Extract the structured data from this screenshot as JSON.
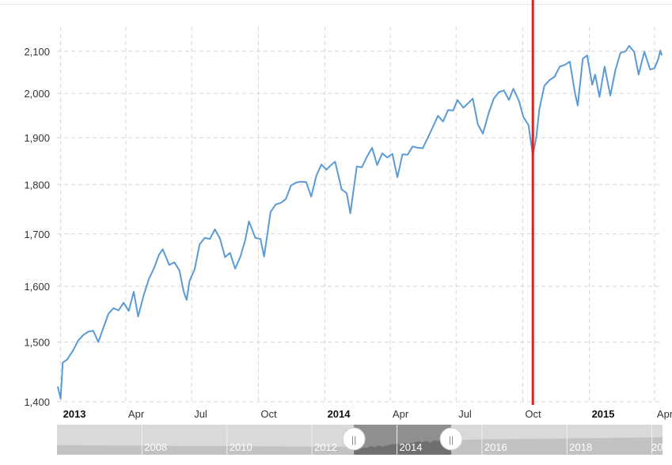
{
  "chart_data": {
    "type": "line",
    "title": "",
    "xlabel": "",
    "ylabel": "",
    "yscale": "log",
    "ylim": [
      1400,
      2160
    ],
    "y_ticks": [
      "1,400",
      "1,500",
      "1,600",
      "1,700",
      "1,800",
      "1,900",
      "2,000",
      "2,100"
    ],
    "y_tick_values": [
      1400,
      1500,
      1600,
      1700,
      1800,
      1900,
      2000,
      2100
    ],
    "xlim": [
      "2012-12-27",
      "2015-04-12"
    ],
    "x_ticks": [
      {
        "label": "2013",
        "date": "2013-01-01",
        "major": true
      },
      {
        "label": "Apr",
        "date": "2013-04-01",
        "major": false
      },
      {
        "label": "Jul",
        "date": "2013-07-01",
        "major": false
      },
      {
        "label": "Oct",
        "date": "2013-10-01",
        "major": false
      },
      {
        "label": "2014",
        "date": "2014-01-01",
        "major": true
      },
      {
        "label": "Apr",
        "date": "2014-04-01",
        "major": false
      },
      {
        "label": "Jul",
        "date": "2014-07-01",
        "major": false
      },
      {
        "label": "Oct",
        "date": "2014-10-01",
        "major": false
      },
      {
        "label": "2015",
        "date": "2015-01-01",
        "major": true
      },
      {
        "label": "Apr",
        "date": "2015-04-01",
        "major": false
      }
    ],
    "grid": true,
    "marker_line": {
      "date": "2014-10-15",
      "color": "#dd2222"
    },
    "series": [
      {
        "color": "#5b9bd5",
        "points": [
          [
            "2012-12-28",
            1425
          ],
          [
            "2013-01-01",
            1405
          ],
          [
            "2013-01-04",
            1465
          ],
          [
            "2013-01-10",
            1470
          ],
          [
            "2013-01-18",
            1485
          ],
          [
            "2013-01-25",
            1502
          ],
          [
            "2013-02-01",
            1512
          ],
          [
            "2013-02-08",
            1518
          ],
          [
            "2013-02-15",
            1520
          ],
          [
            "2013-02-22",
            1500
          ],
          [
            "2013-03-01",
            1525
          ],
          [
            "2013-03-08",
            1550
          ],
          [
            "2013-03-15",
            1560
          ],
          [
            "2013-03-22",
            1556
          ],
          [
            "2013-03-29",
            1570
          ],
          [
            "2013-04-05",
            1555
          ],
          [
            "2013-04-12",
            1590
          ],
          [
            "2013-04-18",
            1545
          ],
          [
            "2013-04-26",
            1585
          ],
          [
            "2013-05-03",
            1614
          ],
          [
            "2013-05-10",
            1634
          ],
          [
            "2013-05-17",
            1660
          ],
          [
            "2013-05-22",
            1670
          ],
          [
            "2013-05-31",
            1640
          ],
          [
            "2013-06-07",
            1645
          ],
          [
            "2013-06-14",
            1630
          ],
          [
            "2013-06-20",
            1590
          ],
          [
            "2013-06-24",
            1575
          ],
          [
            "2013-06-28",
            1610
          ],
          [
            "2013-07-05",
            1632
          ],
          [
            "2013-07-12",
            1680
          ],
          [
            "2013-07-19",
            1692
          ],
          [
            "2013-07-26",
            1690
          ],
          [
            "2013-08-02",
            1709
          ],
          [
            "2013-08-09",
            1691
          ],
          [
            "2013-08-16",
            1655
          ],
          [
            "2013-08-23",
            1663
          ],
          [
            "2013-08-30",
            1633
          ],
          [
            "2013-09-06",
            1655
          ],
          [
            "2013-09-13",
            1688
          ],
          [
            "2013-09-18",
            1725
          ],
          [
            "2013-09-27",
            1692
          ],
          [
            "2013-10-04",
            1690
          ],
          [
            "2013-10-09",
            1656
          ],
          [
            "2013-10-18",
            1744
          ],
          [
            "2013-10-25",
            1759
          ],
          [
            "2013-11-01",
            1762
          ],
          [
            "2013-11-08",
            1770
          ],
          [
            "2013-11-15",
            1798
          ],
          [
            "2013-11-22",
            1804
          ],
          [
            "2013-11-29",
            1806
          ],
          [
            "2013-12-06",
            1805
          ],
          [
            "2013-12-13",
            1775
          ],
          [
            "2013-12-20",
            1818
          ],
          [
            "2013-12-27",
            1842
          ],
          [
            "2014-01-03",
            1831
          ],
          [
            "2014-01-10",
            1842
          ],
          [
            "2014-01-15",
            1848
          ],
          [
            "2014-01-24",
            1790
          ],
          [
            "2014-01-31",
            1782
          ],
          [
            "2014-02-05",
            1741
          ],
          [
            "2014-02-14",
            1838
          ],
          [
            "2014-02-21",
            1836
          ],
          [
            "2014-02-28",
            1859
          ],
          [
            "2014-03-07",
            1878
          ],
          [
            "2014-03-14",
            1841
          ],
          [
            "2014-03-21",
            1866
          ],
          [
            "2014-03-28",
            1857
          ],
          [
            "2014-04-04",
            1865
          ],
          [
            "2014-04-11",
            1815
          ],
          [
            "2014-04-18",
            1864
          ],
          [
            "2014-04-25",
            1863
          ],
          [
            "2014-05-02",
            1881
          ],
          [
            "2014-05-09",
            1878
          ],
          [
            "2014-05-16",
            1877
          ],
          [
            "2014-05-23",
            1900
          ],
          [
            "2014-05-30",
            1924
          ],
          [
            "2014-06-06",
            1949
          ],
          [
            "2014-06-13",
            1936
          ],
          [
            "2014-06-20",
            1962
          ],
          [
            "2014-06-27",
            1961
          ],
          [
            "2014-07-03",
            1985
          ],
          [
            "2014-07-11",
            1967
          ],
          [
            "2014-07-18",
            1978
          ],
          [
            "2014-07-24",
            1988
          ],
          [
            "2014-07-31",
            1930
          ],
          [
            "2014-08-07",
            1909
          ],
          [
            "2014-08-15",
            1955
          ],
          [
            "2014-08-22",
            1988
          ],
          [
            "2014-08-29",
            2003
          ],
          [
            "2014-09-05",
            2007
          ],
          [
            "2014-09-12",
            1985
          ],
          [
            "2014-09-18",
            2011
          ],
          [
            "2014-09-26",
            1982
          ],
          [
            "2014-10-02",
            1946
          ],
          [
            "2014-10-09",
            1928
          ],
          [
            "2014-10-15",
            1862
          ],
          [
            "2014-10-20",
            1904
          ],
          [
            "2014-10-24",
            1964
          ],
          [
            "2014-10-31",
            2018
          ],
          [
            "2014-11-07",
            2031
          ],
          [
            "2014-11-14",
            2039
          ],
          [
            "2014-11-21",
            2063
          ],
          [
            "2014-11-28",
            2067
          ],
          [
            "2014-12-05",
            2075
          ],
          [
            "2014-12-12",
            2002
          ],
          [
            "2014-12-16",
            1972
          ],
          [
            "2014-12-23",
            2082
          ],
          [
            "2014-12-29",
            2090
          ],
          [
            "2015-01-05",
            2020
          ],
          [
            "2015-01-09",
            2044
          ],
          [
            "2015-01-15",
            1992
          ],
          [
            "2015-01-22",
            2063
          ],
          [
            "2015-01-30",
            1995
          ],
          [
            "2015-02-06",
            2055
          ],
          [
            "2015-02-13",
            2096
          ],
          [
            "2015-02-20",
            2100
          ],
          [
            "2015-02-25",
            2113
          ],
          [
            "2015-03-04",
            2098
          ],
          [
            "2015-03-10",
            2044
          ],
          [
            "2015-03-18",
            2099
          ],
          [
            "2015-03-26",
            2056
          ],
          [
            "2015-04-01",
            2059
          ],
          [
            "2015-04-06",
            2080
          ],
          [
            "2015-04-09",
            2102
          ],
          [
            "2015-04-11",
            2090
          ]
        ]
      }
    ],
    "navigator": {
      "labels": [
        "2008",
        "2010",
        "2012",
        "2014",
        "2016",
        "2018",
        "20"
      ],
      "label_dates": [
        "2008-01-01",
        "2010-01-01",
        "2012-01-01",
        "2014-01-01",
        "2016-01-01",
        "2018-01-01",
        "2020-01-01"
      ],
      "range": [
        "2006-01-01",
        "2020-04-01"
      ],
      "selected": [
        "2012-12-27",
        "2015-04-12"
      ],
      "handle_glyph": "||"
    }
  }
}
